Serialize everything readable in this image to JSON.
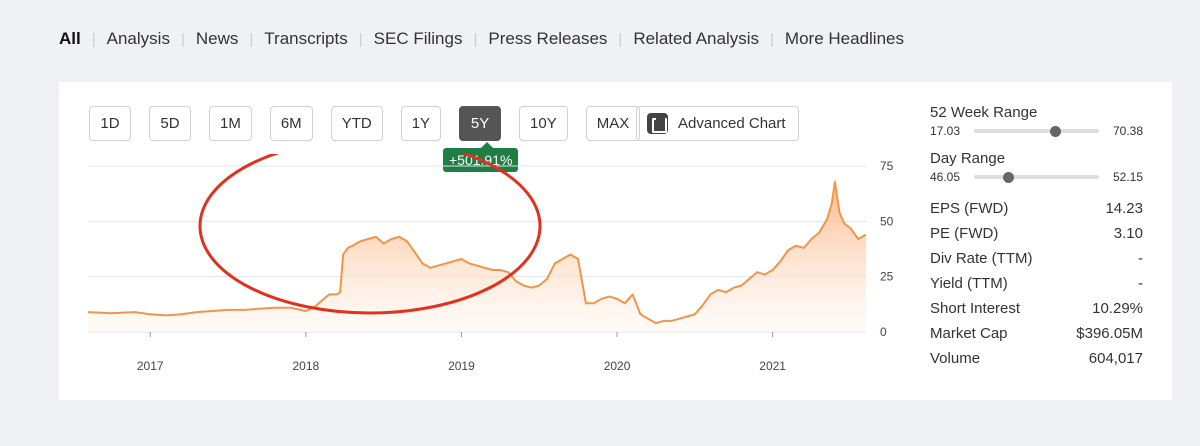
{
  "tabs": [
    {
      "label": "All",
      "active": true
    },
    {
      "label": "Analysis"
    },
    {
      "label": "News"
    },
    {
      "label": "Transcripts"
    },
    {
      "label": "SEC Filings"
    },
    {
      "label": "Press Releases"
    },
    {
      "label": "Related Analysis"
    },
    {
      "label": "More Headlines"
    }
  ],
  "ranges": [
    {
      "label": "1D"
    },
    {
      "label": "5D"
    },
    {
      "label": "1M"
    },
    {
      "label": "6M"
    },
    {
      "label": "YTD"
    },
    {
      "label": "1Y"
    },
    {
      "label": "5Y",
      "active": true
    },
    {
      "label": "10Y"
    },
    {
      "label": "MAX"
    }
  ],
  "advanced_chart_label": "Advanced Chart",
  "performance_badge": "+501.91%",
  "stats": {
    "week52": {
      "title": "52 Week Range",
      "low": "17.03",
      "high": "70.38",
      "position": 0.65
    },
    "day": {
      "title": "Day Range",
      "low": "46.05",
      "high": "52.15",
      "position": 0.27
    },
    "rows": [
      {
        "label": "EPS (FWD)",
        "value": "14.23"
      },
      {
        "label": "PE (FWD)",
        "value": "3.10"
      },
      {
        "label": "Div Rate (TTM)",
        "value": "-"
      },
      {
        "label": "Yield (TTM)",
        "value": "-"
      },
      {
        "label": "Short Interest",
        "value": "10.29%"
      },
      {
        "label": "Market Cap",
        "value": "$396.05M"
      },
      {
        "label": "Volume",
        "value": "604,017"
      }
    ]
  },
  "colors": {
    "line": "#f0954a",
    "fill_top": "#fab581",
    "badge": "#1e7e45",
    "annotation": "#e0321f"
  },
  "chart_data": {
    "type": "area",
    "x_ticks": [
      "2017",
      "2018",
      "2019",
      "2020",
      "2021"
    ],
    "y_ticks": [
      "75",
      "50",
      "25",
      "0"
    ],
    "ylim": [
      0,
      75
    ],
    "xlim": [
      2016.6,
      2021.6
    ],
    "grid": true,
    "series": [
      {
        "x": [
          2016.6,
          2016.75,
          2016.9,
          2017.0,
          2017.1,
          2017.2,
          2017.3,
          2017.4,
          2017.5,
          2017.6,
          2017.7,
          2017.8,
          2017.9,
          2018.0,
          2018.05,
          2018.1,
          2018.15,
          2018.2,
          2018.22,
          2018.24,
          2018.27,
          2018.3,
          2018.35,
          2018.4,
          2018.45,
          2018.5,
          2018.55,
          2018.6,
          2018.65,
          2018.7,
          2018.75,
          2018.8,
          2018.85,
          2018.9,
          2018.95,
          2019.0,
          2019.05,
          2019.1,
          2019.15,
          2019.2,
          2019.25,
          2019.3,
          2019.35,
          2019.4,
          2019.45,
          2019.5,
          2019.55,
          2019.6,
          2019.65,
          2019.7,
          2019.75,
          2019.8,
          2019.85,
          2019.9,
          2019.95,
          2020.0,
          2020.05,
          2020.1,
          2020.15,
          2020.2,
          2020.25,
          2020.3,
          2020.35,
          2020.4,
          2020.45,
          2020.5,
          2020.55,
          2020.6,
          2020.65,
          2020.7,
          2020.75,
          2020.8,
          2020.85,
          2020.9,
          2020.95,
          2021.0,
          2021.05,
          2021.1,
          2021.15,
          2021.2,
          2021.25,
          2021.3,
          2021.35,
          2021.38,
          2021.4,
          2021.43,
          2021.46,
          2021.5,
          2021.55,
          2021.6
        ],
        "y": [
          9,
          8.5,
          9,
          8,
          7.5,
          8,
          9,
          9.5,
          10,
          10,
          10.5,
          11,
          11,
          9.5,
          11,
          14,
          17,
          17,
          18,
          35,
          38,
          39,
          41,
          42,
          43,
          40,
          42,
          43,
          41,
          36,
          31,
          29,
          30,
          31,
          32,
          33,
          31,
          30,
          29,
          28,
          28,
          27,
          23,
          21,
          20,
          21,
          24,
          31,
          33,
          35,
          33,
          13,
          13,
          15,
          16,
          15,
          13,
          17,
          8,
          6,
          4,
          5,
          5,
          6,
          7,
          8,
          12,
          17,
          19,
          18,
          20,
          21,
          24,
          27,
          26,
          28,
          32,
          37,
          39,
          38,
          42,
          45,
          51,
          58,
          68,
          54,
          49,
          47,
          42,
          44
        ]
      }
    ]
  }
}
